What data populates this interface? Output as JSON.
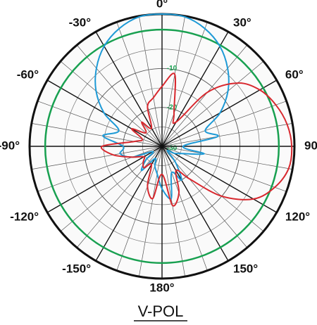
{
  "chart_data": {
    "type": "polar",
    "title": "V-POL",
    "thetas": [
      -180,
      -170,
      -160,
      -150,
      -140,
      -130,
      -120,
      -110,
      -100,
      -90,
      -80,
      -70,
      -60,
      -50,
      -40,
      -30,
      -20,
      -10,
      0,
      10,
      20,
      30,
      40,
      50,
      60,
      70,
      80,
      90,
      100,
      110,
      120,
      130,
      140,
      150,
      160,
      170
    ],
    "series": [
      {
        "color": "#1e9ad6",
        "values": [
          -19.1,
          -22.8,
          -24.6,
          -26.4,
          -21.9,
          -24.6,
          -27.3,
          -21.9,
          -19.1,
          -20,
          -14.6,
          -18.2,
          -12.8,
          -7.9,
          -3.8,
          -0.3,
          2.2,
          3.8,
          4,
          3.8,
          2.2,
          -0.3,
          -3.8,
          -7.9,
          -12.8,
          -18.2,
          -15.5,
          -24.6,
          -19,
          -24.6,
          -26.4,
          -28.2,
          -24.6,
          -20,
          -22.8,
          -16.4
        ]
      },
      {
        "color": "#d8282e",
        "values": [
          -22.8,
          -16.4,
          -19.1,
          -24.6,
          -22.8,
          -23.7,
          -24.6,
          -21.9,
          -17.3,
          -14.6,
          -22.8,
          -24.6,
          -21,
          -24.6,
          -21.9,
          -24.6,
          -19.1,
          -17.3,
          -14.6,
          -11.2,
          -21,
          -22.8,
          -11.9,
          -4.7,
          -1,
          1.1,
          2.6,
          3.3,
          3,
          0.8,
          -2.9,
          -10.1,
          -19.1,
          -22.8,
          -17.3,
          -14.6
        ]
      }
    ],
    "rlim": [
      -30,
      4
    ],
    "rticks": [
      -30,
      -20,
      -10
    ],
    "minor_rticks": [
      -25,
      -15,
      -5
    ],
    "reference_level": 0,
    "reference_color": "#18a050",
    "xticks": [
      {
        "value": 0,
        "label": "0°"
      },
      {
        "value": 30,
        "label": "30°"
      },
      {
        "value": 60,
        "label": "60°"
      },
      {
        "value": 90,
        "label": "90°"
      },
      {
        "value": 120,
        "label": "120°"
      },
      {
        "value": 150,
        "label": "150°"
      },
      {
        "value": 180,
        "label": "180°"
      },
      {
        "value": -150,
        "label": "-150°"
      },
      {
        "value": -120,
        "label": "-120°"
      },
      {
        "value": -90,
        "label": "-90°"
      },
      {
        "value": -60,
        "label": "-60°"
      },
      {
        "value": -30,
        "label": "-30°"
      }
    ],
    "minor_xticks": [
      10,
      20,
      40,
      50,
      70,
      80,
      100,
      110,
      130,
      140,
      160,
      170,
      -170,
      -160,
      -140,
      -130,
      -110,
      -100,
      -80,
      -70,
      -50,
      -40,
      -20,
      -10
    ]
  }
}
